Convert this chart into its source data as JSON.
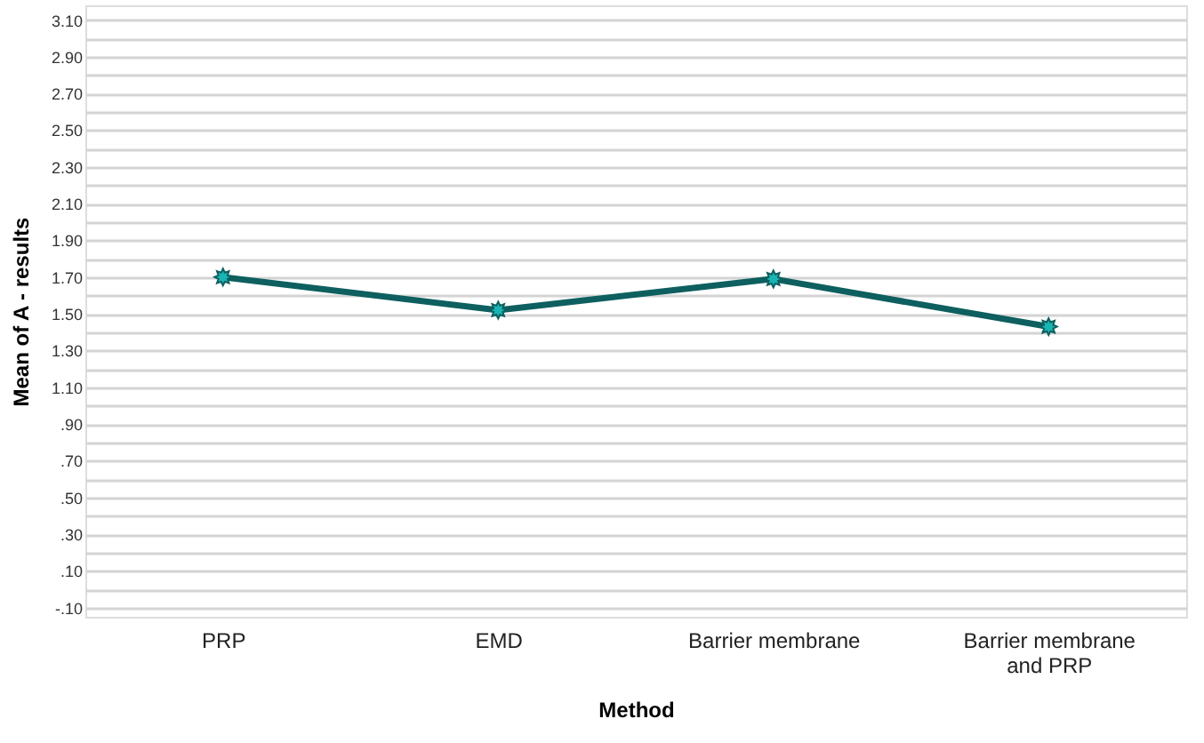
{
  "chart_data": {
    "type": "line",
    "xlabel": "Method",
    "ylabel": "Mean of A - results",
    "categories": [
      "PRP",
      "EMD",
      "Barrier membrane",
      "Barrier membrane and PRP"
    ],
    "series": [
      {
        "color": "#0e5f5f",
        "values": [
          1.7,
          1.52,
          1.69,
          1.43
        ]
      }
    ],
    "marker": "star",
    "line_style": "solid",
    "grid": "y",
    "ylim": [
      -0.15,
      3.18
    ],
    "yticks": [
      {
        "value": -0.1,
        "label": "-.10"
      },
      {
        "value": 0.0,
        "label": null
      },
      {
        "value": 0.1,
        "label": ".10"
      },
      {
        "value": 0.2,
        "label": null
      },
      {
        "value": 0.3,
        "label": ".30"
      },
      {
        "value": 0.4,
        "label": null
      },
      {
        "value": 0.5,
        "label": ".50"
      },
      {
        "value": 0.6,
        "label": null
      },
      {
        "value": 0.7,
        "label": ".70"
      },
      {
        "value": 0.8,
        "label": null
      },
      {
        "value": 0.9,
        "label": ".90"
      },
      {
        "value": 1.0,
        "label": null
      },
      {
        "value": 1.1,
        "label": "1.10"
      },
      {
        "value": 1.2,
        "label": null
      },
      {
        "value": 1.3,
        "label": "1.30"
      },
      {
        "value": 1.4,
        "label": null
      },
      {
        "value": 1.5,
        "label": "1.50"
      },
      {
        "value": 1.6,
        "label": null
      },
      {
        "value": 1.7,
        "label": "1.70"
      },
      {
        "value": 1.8,
        "label": null
      },
      {
        "value": 1.9,
        "label": "1.90"
      },
      {
        "value": 2.0,
        "label": null
      },
      {
        "value": 2.1,
        "label": "2.10"
      },
      {
        "value": 2.2,
        "label": null
      },
      {
        "value": 2.3,
        "label": "2.30"
      },
      {
        "value": 2.4,
        "label": null
      },
      {
        "value": 2.5,
        "label": "2.50"
      },
      {
        "value": 2.6,
        "label": null
      },
      {
        "value": 2.7,
        "label": "2.70"
      },
      {
        "value": 2.8,
        "label": null
      },
      {
        "value": 2.9,
        "label": "2.90"
      },
      {
        "value": 3.0,
        "label": null
      },
      {
        "value": 3.1,
        "label": "3.10"
      }
    ]
  }
}
